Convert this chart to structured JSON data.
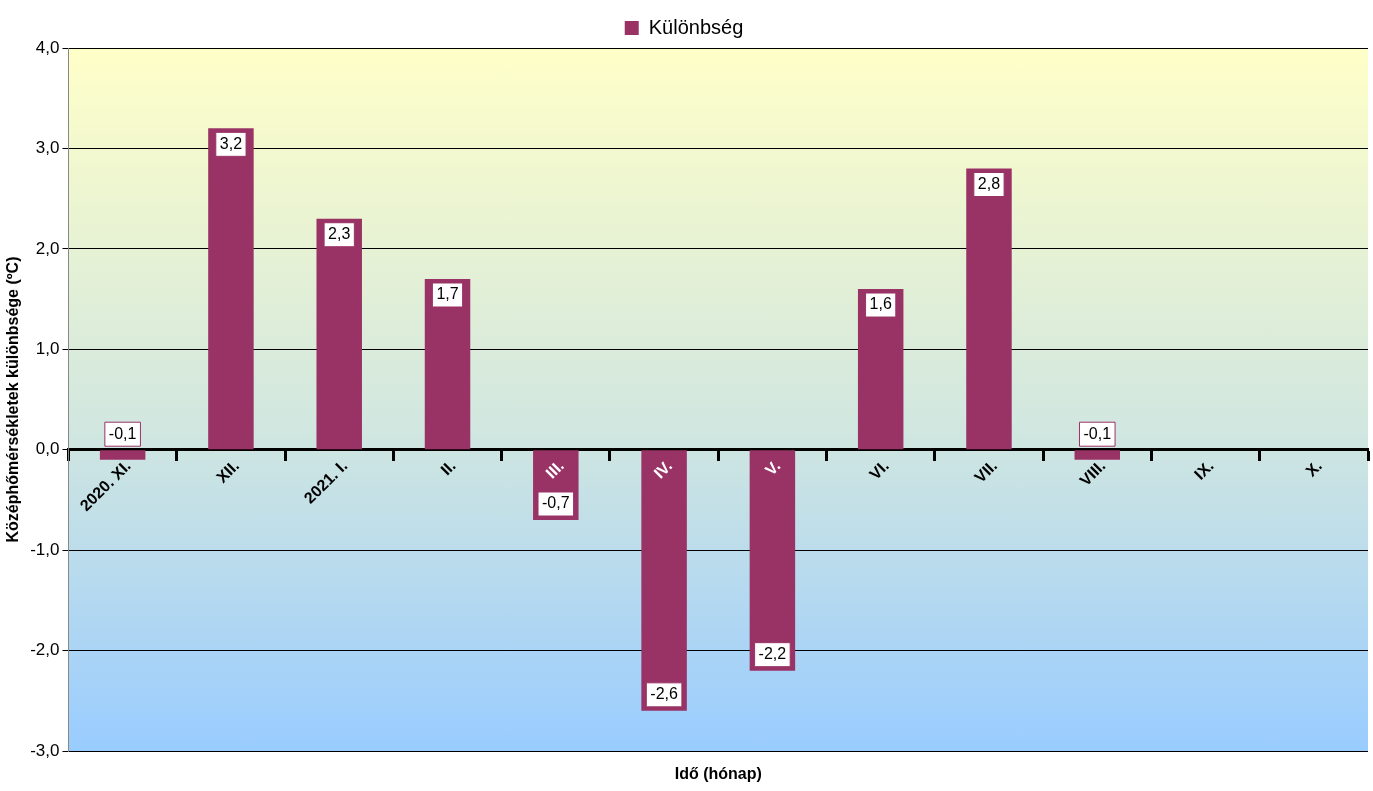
{
  "chart_data": {
    "type": "bar",
    "xlabel": "Idő (hónap)",
    "ylabel": "Középhőmérsékletek különbsége (ºC)",
    "categories": [
      "2020. XI.",
      "XII.",
      "2021. I.",
      "II.",
      "III.",
      "IV.",
      "V.",
      "VI.",
      "VII.",
      "VIII.",
      "IX.",
      "X."
    ],
    "series": [
      {
        "name": "Különbség",
        "color": "#993366",
        "values": [
          -0.1,
          3.2,
          2.3,
          1.7,
          -0.7,
          -2.6,
          -2.2,
          1.6,
          2.8,
          -0.1,
          null,
          null
        ],
        "value_labels": [
          "-0,1",
          "3,2",
          "2,3",
          "1,7",
          "-0,7",
          "-2,6",
          "-2,2",
          "1,6",
          "2,8",
          "-0,1",
          null,
          null
        ]
      }
    ],
    "ylim": [
      -3,
      4
    ],
    "yticks": [
      {
        "value": -3,
        "label": "-3,0"
      },
      {
        "value": -2,
        "label": "-2,0"
      },
      {
        "value": -1,
        "label": "-1,0"
      },
      {
        "value": 0,
        "label": "0,0"
      },
      {
        "value": 1,
        "label": "1,0"
      },
      {
        "value": 2,
        "label": "2,0"
      },
      {
        "value": 3,
        "label": "3,0"
      },
      {
        "value": 4,
        "label": "4,0"
      }
    ],
    "grid": "y",
    "legend": "top"
  }
}
